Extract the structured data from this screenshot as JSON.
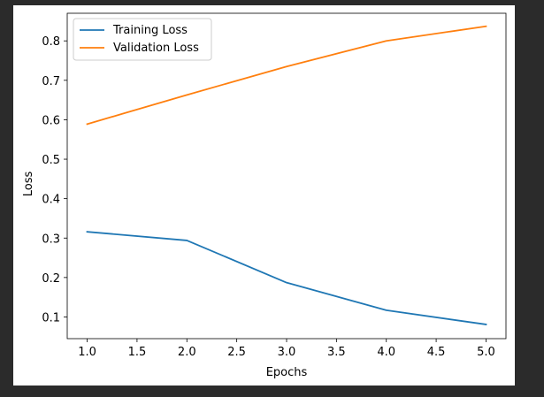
{
  "chart_data": {
    "type": "line",
    "title": "",
    "xlabel": "Epochs",
    "ylabel": "Loss",
    "xlim": [
      0.8,
      5.2
    ],
    "ylim": [
      0.045,
      0.87
    ],
    "x_ticks": [
      "1.0",
      "1.5",
      "2.0",
      "2.5",
      "3.0",
      "3.5",
      "4.0",
      "4.5",
      "5.0"
    ],
    "y_ticks": [
      "0.1",
      "0.2",
      "0.3",
      "0.4",
      "0.5",
      "0.6",
      "0.7",
      "0.8"
    ],
    "grid": false,
    "legend_position": "upper-left",
    "x": [
      1,
      2,
      3,
      4,
      5
    ],
    "series": [
      {
        "name": "Training Loss",
        "color": "#1f77b4",
        "values": [
          0.316,
          0.294,
          0.187,
          0.117,
          0.081
        ]
      },
      {
        "name": "Validation Loss",
        "color": "#ff7f0e",
        "values": [
          0.589,
          0.663,
          0.735,
          0.8,
          0.837
        ]
      }
    ]
  }
}
